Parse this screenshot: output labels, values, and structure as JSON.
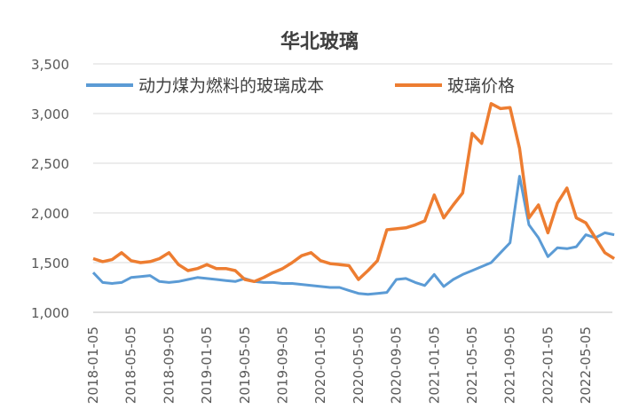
{
  "chart_data": {
    "type": "line",
    "title": "华北玻璃",
    "xlabel": "",
    "ylabel": "",
    "ylim": [
      1000,
      3500
    ],
    "yticks": [
      "1,000",
      "1,500",
      "2,000",
      "2,500",
      "3,000",
      "3,500"
    ],
    "ytick_values": [
      1000,
      1500,
      2000,
      2500,
      3000,
      3500
    ],
    "grid": "horizontal",
    "legend_position": "top",
    "xtick_labels": [
      "2018-01-05",
      "2018-05-05",
      "2018-09-05",
      "2019-01-05",
      "2019-05-05",
      "2019-09-05",
      "2020-01-05",
      "2020-05-05",
      "2020-09-05",
      "2021-01-05",
      "2021-05-05",
      "2021-09-05",
      "2022-01-05",
      "2022-05-05"
    ],
    "x": [
      "2018-01",
      "2018-02",
      "2018-03",
      "2018-04",
      "2018-05",
      "2018-06",
      "2018-07",
      "2018-08",
      "2018-09",
      "2018-10",
      "2018-11",
      "2018-12",
      "2019-01",
      "2019-02",
      "2019-03",
      "2019-04",
      "2019-05",
      "2019-06",
      "2019-07",
      "2019-08",
      "2019-09",
      "2019-10",
      "2019-11",
      "2019-12",
      "2020-01",
      "2020-02",
      "2020-03",
      "2020-04",
      "2020-05",
      "2020-06",
      "2020-07",
      "2020-08",
      "2020-09",
      "2020-10",
      "2020-11",
      "2020-12",
      "2021-01",
      "2021-02",
      "2021-03",
      "2021-04",
      "2021-05",
      "2021-06",
      "2021-07",
      "2021-08",
      "2021-09",
      "2021-10",
      "2021-11",
      "2021-12",
      "2022-01",
      "2022-02",
      "2022-03",
      "2022-04",
      "2022-05",
      "2022-06",
      "2022-07",
      "2022-08"
    ],
    "series": [
      {
        "name": "动力煤为燃料的玻璃成本",
        "color": "#5B9BD5",
        "values": [
          1400,
          1300,
          1290,
          1300,
          1350,
          1360,
          1370,
          1310,
          1300,
          1310,
          1330,
          1350,
          1340,
          1330,
          1320,
          1310,
          1340,
          1310,
          1300,
          1300,
          1290,
          1290,
          1280,
          1270,
          1260,
          1250,
          1250,
          1220,
          1190,
          1180,
          1190,
          1200,
          1330,
          1340,
          1300,
          1270,
          1380,
          1260,
          1330,
          1380,
          1420,
          1460,
          1500,
          1600,
          1700,
          2370,
          1880,
          1750,
          1560,
          1650,
          1640,
          1660,
          1780,
          1750,
          1800,
          1780
        ]
      },
      {
        "name": "玻璃价格",
        "color": "#ED7D31",
        "values": [
          1540,
          1510,
          1530,
          1600,
          1520,
          1500,
          1510,
          1540,
          1600,
          1480,
          1420,
          1440,
          1480,
          1440,
          1440,
          1420,
          1330,
          1310,
          1350,
          1400,
          1440,
          1500,
          1570,
          1600,
          1520,
          1490,
          1480,
          1470,
          1330,
          1420,
          1520,
          1830,
          1840,
          1850,
          1880,
          1920,
          2180,
          1950,
          2080,
          2200,
          2800,
          2700,
          3100,
          3050,
          3060,
          2650,
          1950,
          2080,
          1800,
          2100,
          2250,
          1950,
          1900,
          1750,
          1600,
          1540
        ]
      }
    ]
  }
}
